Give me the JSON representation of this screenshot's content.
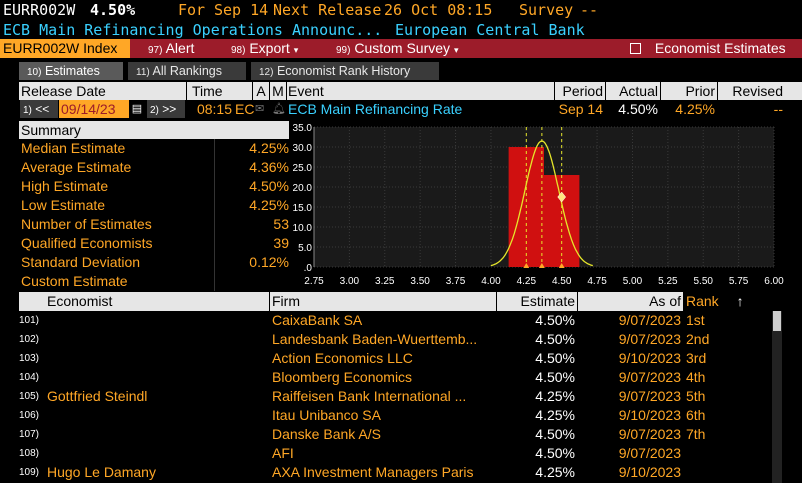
{
  "header": {
    "ticker": "EURR002W",
    "value": "4.50%",
    "for_label": "For",
    "for_date": "Sep 14",
    "next_label": "Next Release",
    "next_date": "26 Oct 08:15",
    "survey_label": "Survey",
    "survey_value": "--",
    "event_title": "ECB Main Refinancing Operations Announc...",
    "source": "European Central Bank"
  },
  "toolbar": {
    "index_label": "EURR002W Index",
    "alert_num": "97)",
    "alert_label": "Alert",
    "export_num": "98)",
    "export_label": "Export",
    "custom_num": "99)",
    "custom_label": "Custom Survey",
    "economist_label": "Economist Estimates"
  },
  "tabs": [
    {
      "num": "10)",
      "label": "Estimates"
    },
    {
      "num": "11)",
      "label": "All Rankings"
    },
    {
      "num": "12)",
      "label": "Economist Rank History"
    }
  ],
  "columns": {
    "release_date": "Release Date",
    "time": "Time",
    "a": "A",
    "m": "M",
    "event": "Event",
    "period": "Period",
    "actual": "Actual",
    "prior": "Prior",
    "revised": "Revised"
  },
  "row": {
    "prev_num": "1)",
    "prev_arrows": "<<",
    "date": "09/14/23",
    "next_num": "2)",
    "next_arrows": ">>",
    "time": "08:15",
    "country": "EC",
    "event": "ECB Main Refinancing Rate",
    "period": "Sep 14",
    "actual": "4.50%",
    "prior": "4.25%",
    "revised": "--"
  },
  "summary": {
    "title": "Summary",
    "rows": [
      {
        "label": "Median Estimate",
        "value": "4.25%"
      },
      {
        "label": "Average Estimate",
        "value": "4.36%"
      },
      {
        "label": "High Estimate",
        "value": "4.50%"
      },
      {
        "label": "Low Estimate",
        "value": "4.25%"
      },
      {
        "label": "Number of Estimates",
        "value": "53"
      },
      {
        "label": "Qualified Economists",
        "value": "39"
      },
      {
        "label": "Standard Deviation",
        "value": "0.12%"
      },
      {
        "label": "Custom Estimate",
        "value": ""
      }
    ]
  },
  "chart_data": {
    "type": "bar",
    "x_ticks": [
      "2.75",
      "3.00",
      "3.25",
      "3.50",
      "3.75",
      "4.00",
      "4.25",
      "4.50",
      "4.75",
      "5.00",
      "5.25",
      "5.50",
      "5.75",
      "6.00"
    ],
    "y_ticks": [
      "35.0",
      "30.0",
      "25.0",
      "20.0",
      "15.0",
      "10.0",
      "5.0",
      ".0"
    ],
    "xlim": [
      2.75,
      6.0
    ],
    "ylim": [
      0,
      35
    ],
    "bars": [
      {
        "x0": 4.125,
        "x1": 4.375,
        "value": 30
      },
      {
        "x0": 4.375,
        "x1": 4.625,
        "value": 23
      }
    ],
    "colors": {
      "bar": "#d01010",
      "curve": "#e6e62a",
      "marker": "#e6e62a",
      "grid": "#3a3a3a"
    }
  },
  "table": {
    "headers": {
      "economist": "Economist",
      "firm": "Firm",
      "estimate": "Estimate",
      "as_of": "As of",
      "rank": "Rank",
      "sort_arrow": "↑"
    },
    "rows": [
      {
        "num": "101)",
        "economist": "",
        "firm": "CaixaBank SA",
        "estimate": "4.50%",
        "as_of": "9/07/2023",
        "rank": "1st"
      },
      {
        "num": "102)",
        "economist": "",
        "firm": "Landesbank Baden-Wuerttemb...",
        "estimate": "4.50%",
        "as_of": "9/07/2023",
        "rank": "2nd"
      },
      {
        "num": "103)",
        "economist": "",
        "firm": "Action Economics LLC",
        "estimate": "4.50%",
        "as_of": "9/10/2023",
        "rank": "3rd"
      },
      {
        "num": "104)",
        "economist": "",
        "firm": "Bloomberg Economics",
        "estimate": "4.50%",
        "as_of": "9/07/2023",
        "rank": "4th"
      },
      {
        "num": "105)",
        "economist": "Gottfried Steindl",
        "firm": "Raiffeisen Bank International ...",
        "estimate": "4.25%",
        "as_of": "9/07/2023",
        "rank": "5th"
      },
      {
        "num": "106)",
        "economist": "",
        "firm": "Itau Unibanco SA",
        "estimate": "4.25%",
        "as_of": "9/10/2023",
        "rank": "6th"
      },
      {
        "num": "107)",
        "economist": "",
        "firm": "Danske Bank A/S",
        "estimate": "4.50%",
        "as_of": "9/07/2023",
        "rank": "7th"
      },
      {
        "num": "108)",
        "economist": "",
        "firm": "AFI",
        "estimate": "4.50%",
        "as_of": "9/07/2023",
        "rank": ""
      },
      {
        "num": "109)",
        "economist": "Hugo Le Damany",
        "firm": "AXA Investment Managers Paris",
        "estimate": "4.25%",
        "as_of": "9/10/2023",
        "rank": ""
      }
    ]
  }
}
